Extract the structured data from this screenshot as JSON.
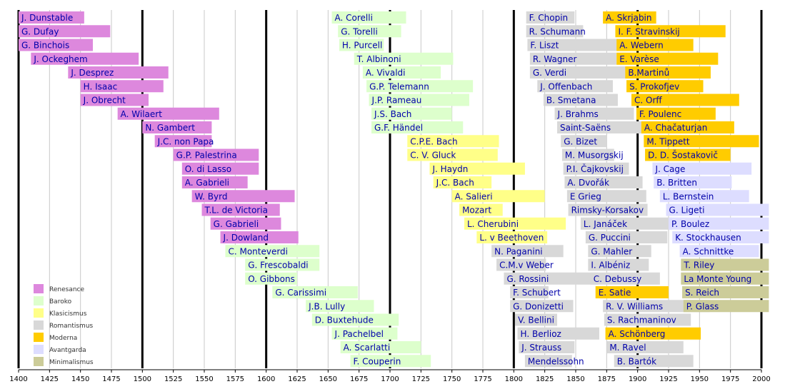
{
  "chart_data": {
    "type": "bar",
    "orientation": "horizontal-timeline",
    "x_range": [
      1400,
      2000
    ],
    "x_ticks": [
      1400,
      1425,
      1450,
      1475,
      1500,
      1525,
      1550,
      1575,
      1600,
      1625,
      1650,
      1675,
      1700,
      1725,
      1750,
      1775,
      1800,
      1825,
      1850,
      1875,
      1900,
      1925,
      1950,
      1975,
      2000
    ],
    "major_gridlines": [
      1400,
      1500,
      1600,
      1700,
      1800,
      1900,
      2000
    ],
    "grid": true,
    "legend_position": "bottom-left",
    "periods": [
      {
        "name": "Renesance",
        "color": "#dd88dd"
      },
      {
        "name": "Baroko",
        "color": "#ddffcc"
      },
      {
        "name": "Klasicismus",
        "color": "#ffff88"
      },
      {
        "name": "Romantismus",
        "color": "#d8d8d8"
      },
      {
        "name": "Moderna",
        "color": "#ffcc00"
      },
      {
        "name": "Avantgarda",
        "color": "#ddddff"
      },
      {
        "name": "Minimalismus",
        "color": "#cccc99"
      }
    ],
    "columns": [
      {
        "row_spacing": 19.25,
        "bars": [
          {
            "label": "J. Dunstable",
            "start": 1400,
            "end": 1453,
            "period": "Renesance"
          },
          {
            "label": "G. Dufay",
            "start": 1400,
            "end": 1474,
            "period": "Renesance"
          },
          {
            "label": "G. Binchois",
            "start": 1400,
            "end": 1460,
            "period": "Renesance"
          },
          {
            "label": "J. Ockeghem",
            "start": 1410,
            "end": 1497,
            "period": "Renesance"
          },
          {
            "label": "J. Desprez",
            "start": 1440,
            "end": 1521,
            "period": "Renesance"
          },
          {
            "label": "H. Isaac",
            "start": 1450,
            "end": 1517,
            "period": "Renesance"
          },
          {
            "label": "J. Obrecht",
            "start": 1450,
            "end": 1505,
            "period": "Renesance"
          },
          {
            "label": "A. Wilaert",
            "start": 1480,
            "end": 1562,
            "period": "Renesance"
          },
          {
            "label": "N. Gambert",
            "start": 1500,
            "end": 1556,
            "period": "Renesance"
          },
          {
            "label": "J.C. non Papa",
            "start": 1510,
            "end": 1556,
            "period": "Renesance"
          },
          {
            "label": "G.P. Palestrina",
            "start": 1525,
            "end": 1594,
            "period": "Renesance"
          },
          {
            "label": "O. di Lasso",
            "start": 1532,
            "end": 1594,
            "period": "Renesance"
          },
          {
            "label": "A. Gabrieli",
            "start": 1532,
            "end": 1585,
            "period": "Renesance"
          },
          {
            "label": "W. Byrd",
            "start": 1540,
            "end": 1623,
            "period": "Renesance"
          },
          {
            "label": "T.L. de Victoria",
            "start": 1548,
            "end": 1611,
            "period": "Renesance"
          },
          {
            "label": "G. Gabrieli",
            "start": 1555,
            "end": 1612,
            "period": "Renesance"
          },
          {
            "label": "J. Dowland",
            "start": 1563,
            "end": 1626,
            "period": "Renesance"
          },
          {
            "label": "C. Monteverdi",
            "start": 1567,
            "end": 1643,
            "period": "Baroko"
          },
          {
            "label": "G. Frescobaldi",
            "start": 1583,
            "end": 1643,
            "period": "Baroko"
          },
          {
            "label": "O. Gibbons",
            "start": 1583,
            "end": 1625,
            "period": "Baroko"
          },
          {
            "label": "G. Carissimi",
            "start": 1605,
            "end": 1674,
            "period": "Baroko"
          },
          {
            "label": "J.B. Lully",
            "start": 1632,
            "end": 1687,
            "period": "Baroko"
          },
          {
            "label": "D. Buxtehude",
            "start": 1637,
            "end": 1707,
            "period": "Baroko"
          },
          {
            "label": "J. Pachelbel",
            "start": 1653,
            "end": 1706,
            "period": "Baroko"
          },
          {
            "label": "A. Scarlatti",
            "start": 1660,
            "end": 1725,
            "period": "Baroko"
          },
          {
            "label": "F. Couperin",
            "start": 1668,
            "end": 1733,
            "period": "Baroko"
          }
        ]
      },
      {
        "row_spacing": 19.25,
        "bars": [
          {
            "label": "A. Corelli",
            "start": 1653,
            "end": 1713,
            "period": "Baroko"
          },
          {
            "label": "G. Torelli",
            "start": 1658,
            "end": 1709,
            "period": "Baroko"
          },
          {
            "label": "H. Purcell",
            "start": 1659,
            "end": 1695,
            "period": "Baroko"
          },
          {
            "label": "T. Albinoni",
            "start": 1671,
            "end": 1751,
            "period": "Baroko"
          },
          {
            "label": "A. Vivaldi",
            "start": 1678,
            "end": 1741,
            "period": "Baroko"
          },
          {
            "label": "G.P. Telemann",
            "start": 1681,
            "end": 1767,
            "period": "Baroko"
          },
          {
            "label": "J.P. Rameau",
            "start": 1683,
            "end": 1764,
            "period": "Baroko"
          },
          {
            "label": "J.S. Bach",
            "start": 1685,
            "end": 1750,
            "period": "Baroko"
          },
          {
            "label": "G.F. Händel",
            "start": 1685,
            "end": 1759,
            "period": "Baroko"
          },
          {
            "label": "C.P.E. Bach",
            "start": 1714,
            "end": 1788,
            "period": "Klasicismus"
          },
          {
            "label": "C. V. Gluck",
            "start": 1714,
            "end": 1787,
            "period": "Klasicismus"
          },
          {
            "label": "J. Haydn",
            "start": 1732,
            "end": 1809,
            "period": "Klasicismus"
          },
          {
            "label": "J.C. Bach",
            "start": 1735,
            "end": 1782,
            "period": "Klasicismus"
          },
          {
            "label": "A. Salieri",
            "start": 1750,
            "end": 1825,
            "period": "Klasicismus"
          },
          {
            "label": "Mozart",
            "start": 1756,
            "end": 1791,
            "period": "Klasicismus"
          },
          {
            "label": "L. Cherubini",
            "start": 1760,
            "end": 1842,
            "period": "Klasicismus"
          },
          {
            "label": "L. v Beethoven",
            "start": 1770,
            "end": 1827,
            "period": "Klasicismus"
          },
          {
            "label": "N. Paganini",
            "start": 1782,
            "end": 1840,
            "period": "Romantismus"
          },
          {
            "label": "C.M.v Weber",
            "start": 1786,
            "end": 1826,
            "period": "Romantismus"
          },
          {
            "label": "G. Rossini",
            "start": 1792,
            "end": 1868,
            "period": "Romantismus"
          },
          {
            "label": "F. Schubert",
            "start": 1797,
            "end": 1828,
            "period": "Romantismus"
          },
          {
            "label": "G. Donizetti",
            "start": 1797,
            "end": 1848,
            "period": "Romantismus"
          },
          {
            "label": "V. Bellini",
            "start": 1801,
            "end": 1835,
            "period": "Romantismus"
          },
          {
            "label": "H. Berlioz",
            "start": 1803,
            "end": 1869,
            "period": "Romantismus"
          },
          {
            "label": "J. Strauss",
            "start": 1804,
            "end": 1849,
            "period": "Romantismus"
          },
          {
            "label": "Mendelssohn",
            "start": 1809,
            "end": 1847,
            "period": "Romantismus"
          }
        ]
      },
      {
        "row_spacing": 19.25,
        "bars": [
          {
            "label": "F. Chopin",
            "start": 1810,
            "end": 1849,
            "period": "Romantismus"
          },
          {
            "label": "R. Schumann",
            "start": 1810,
            "end": 1856,
            "period": "Romantismus"
          },
          {
            "label": "F. Liszt",
            "start": 1811,
            "end": 1886,
            "period": "Romantismus"
          },
          {
            "label": "R. Wagner",
            "start": 1813,
            "end": 1883,
            "period": "Romantismus"
          },
          {
            "label": "G. Verdi",
            "start": 1813,
            "end": 1901,
            "period": "Romantismus"
          },
          {
            "label": "J. Offenbach",
            "start": 1819,
            "end": 1880,
            "period": "Romantismus"
          },
          {
            "label": "B. Smetana",
            "start": 1824,
            "end": 1884,
            "period": "Romantismus"
          },
          {
            "label": "J. Brahms",
            "start": 1833,
            "end": 1897,
            "period": "Romantismus"
          },
          {
            "label": "Saint-Saëns",
            "start": 1835,
            "end": 1921,
            "period": "Romantismus"
          },
          {
            "label": "G. Bizet",
            "start": 1838,
            "end": 1875,
            "period": "Romantismus"
          },
          {
            "label": "M. Musorgskij",
            "start": 1839,
            "end": 1881,
            "period": "Romantismus"
          },
          {
            "label": "P.I. Čajkovskij",
            "start": 1840,
            "end": 1893,
            "period": "Romantismus"
          },
          {
            "label": "A. Dvořák",
            "start": 1841,
            "end": 1904,
            "period": "Romantismus"
          },
          {
            "label": "E Grieg",
            "start": 1843,
            "end": 1907,
            "period": "Romantismus"
          },
          {
            "label": "Rimsky-Korsakov",
            "start": 1844,
            "end": 1908,
            "period": "Romantismus"
          },
          {
            "label": "L. Janáček",
            "start": 1854,
            "end": 1928,
            "period": "Romantismus"
          },
          {
            "label": "G. Puccini",
            "start": 1858,
            "end": 1924,
            "period": "Romantismus"
          },
          {
            "label": "G. Mahler",
            "start": 1860,
            "end": 1911,
            "period": "Romantismus"
          },
          {
            "label": "I. Albéniz",
            "start": 1860,
            "end": 1909,
            "period": "Romantismus"
          },
          {
            "label": "C. Debussy",
            "start": 1862,
            "end": 1918,
            "period": "Romantismus"
          },
          {
            "label": "E. Satie",
            "start": 1866,
            "end": 1925,
            "period": "Moderna"
          },
          {
            "label": "R. V. Williams",
            "start": 1872,
            "end": 1958,
            "period": "Romantismus"
          },
          {
            "label": "S. Rachmaninov",
            "start": 1873,
            "end": 1943,
            "period": "Romantismus"
          },
          {
            "label": "A. Schönberg",
            "start": 1874,
            "end": 1951,
            "period": "Moderna"
          },
          {
            "label": "M. Ravel",
            "start": 1875,
            "end": 1937,
            "period": "Romantismus"
          },
          {
            "label": "B. Bartók",
            "start": 1881,
            "end": 1945,
            "period": "Romantismus"
          }
        ]
      },
      {
        "row_spacing": 19.25,
        "bars": [
          {
            "label": "A. Skrjabin",
            "start": 1872,
            "end": 1915,
            "period": "Moderna"
          },
          {
            "label": "I. F. Stravinskij",
            "start": 1882,
            "end": 1971,
            "period": "Moderna"
          },
          {
            "label": "A. Webern",
            "start": 1883,
            "end": 1945,
            "period": "Moderna"
          },
          {
            "label": "E. Varèse",
            "start": 1883,
            "end": 1965,
            "period": "Moderna"
          },
          {
            "label": "B.Martinů",
            "start": 1890,
            "end": 1959,
            "period": "Moderna"
          },
          {
            "label": "S. Prokofjev",
            "start": 1891,
            "end": 1953,
            "period": "Moderna"
          },
          {
            "label": "C. Orff",
            "start": 1895,
            "end": 1982,
            "period": "Moderna"
          },
          {
            "label": "F. Poulenc",
            "start": 1899,
            "end": 1963,
            "period": "Moderna"
          },
          {
            "label": "A. Chačaturjan",
            "start": 1903,
            "end": 1978,
            "period": "Moderna"
          },
          {
            "label": "M. Tippett",
            "start": 1905,
            "end": 1998,
            "period": "Moderna"
          },
          {
            "label": "D. D. Šostakovič",
            "start": 1906,
            "end": 1975,
            "period": "Moderna"
          },
          {
            "label": "J. Cage",
            "start": 1912,
            "end": 1992,
            "period": "Avantgarda"
          },
          {
            "label": "B. Britten",
            "start": 1913,
            "end": 1976,
            "period": "Avantgarda"
          },
          {
            "label": "L. Bernstein",
            "start": 1918,
            "end": 1990,
            "period": "Avantgarda"
          },
          {
            "label": "G. Ligeti",
            "start": 1923,
            "end": 2006,
            "period": "Avantgarda"
          },
          {
            "label": "P. Boulez",
            "start": 1925,
            "end": 2006,
            "period": "Avantgarda"
          },
          {
            "label": "K. Stockhausen",
            "start": 1928,
            "end": 2006,
            "period": "Avantgarda"
          },
          {
            "label": "A. Schnittke",
            "start": 1934,
            "end": 1998,
            "period": "Avantgarda"
          },
          {
            "label": "T. Riley",
            "start": 1935,
            "end": 2006,
            "period": "Minimalismus"
          },
          {
            "label": "La Monte Young",
            "start": 1935,
            "end": 2006,
            "period": "Minimalismus"
          },
          {
            "label": "S. Reich",
            "start": 1936,
            "end": 2006,
            "period": "Minimalismus"
          },
          {
            "label": "P. Glass",
            "start": 1937,
            "end": 2006,
            "period": "Minimalismus"
          }
        ]
      }
    ]
  }
}
